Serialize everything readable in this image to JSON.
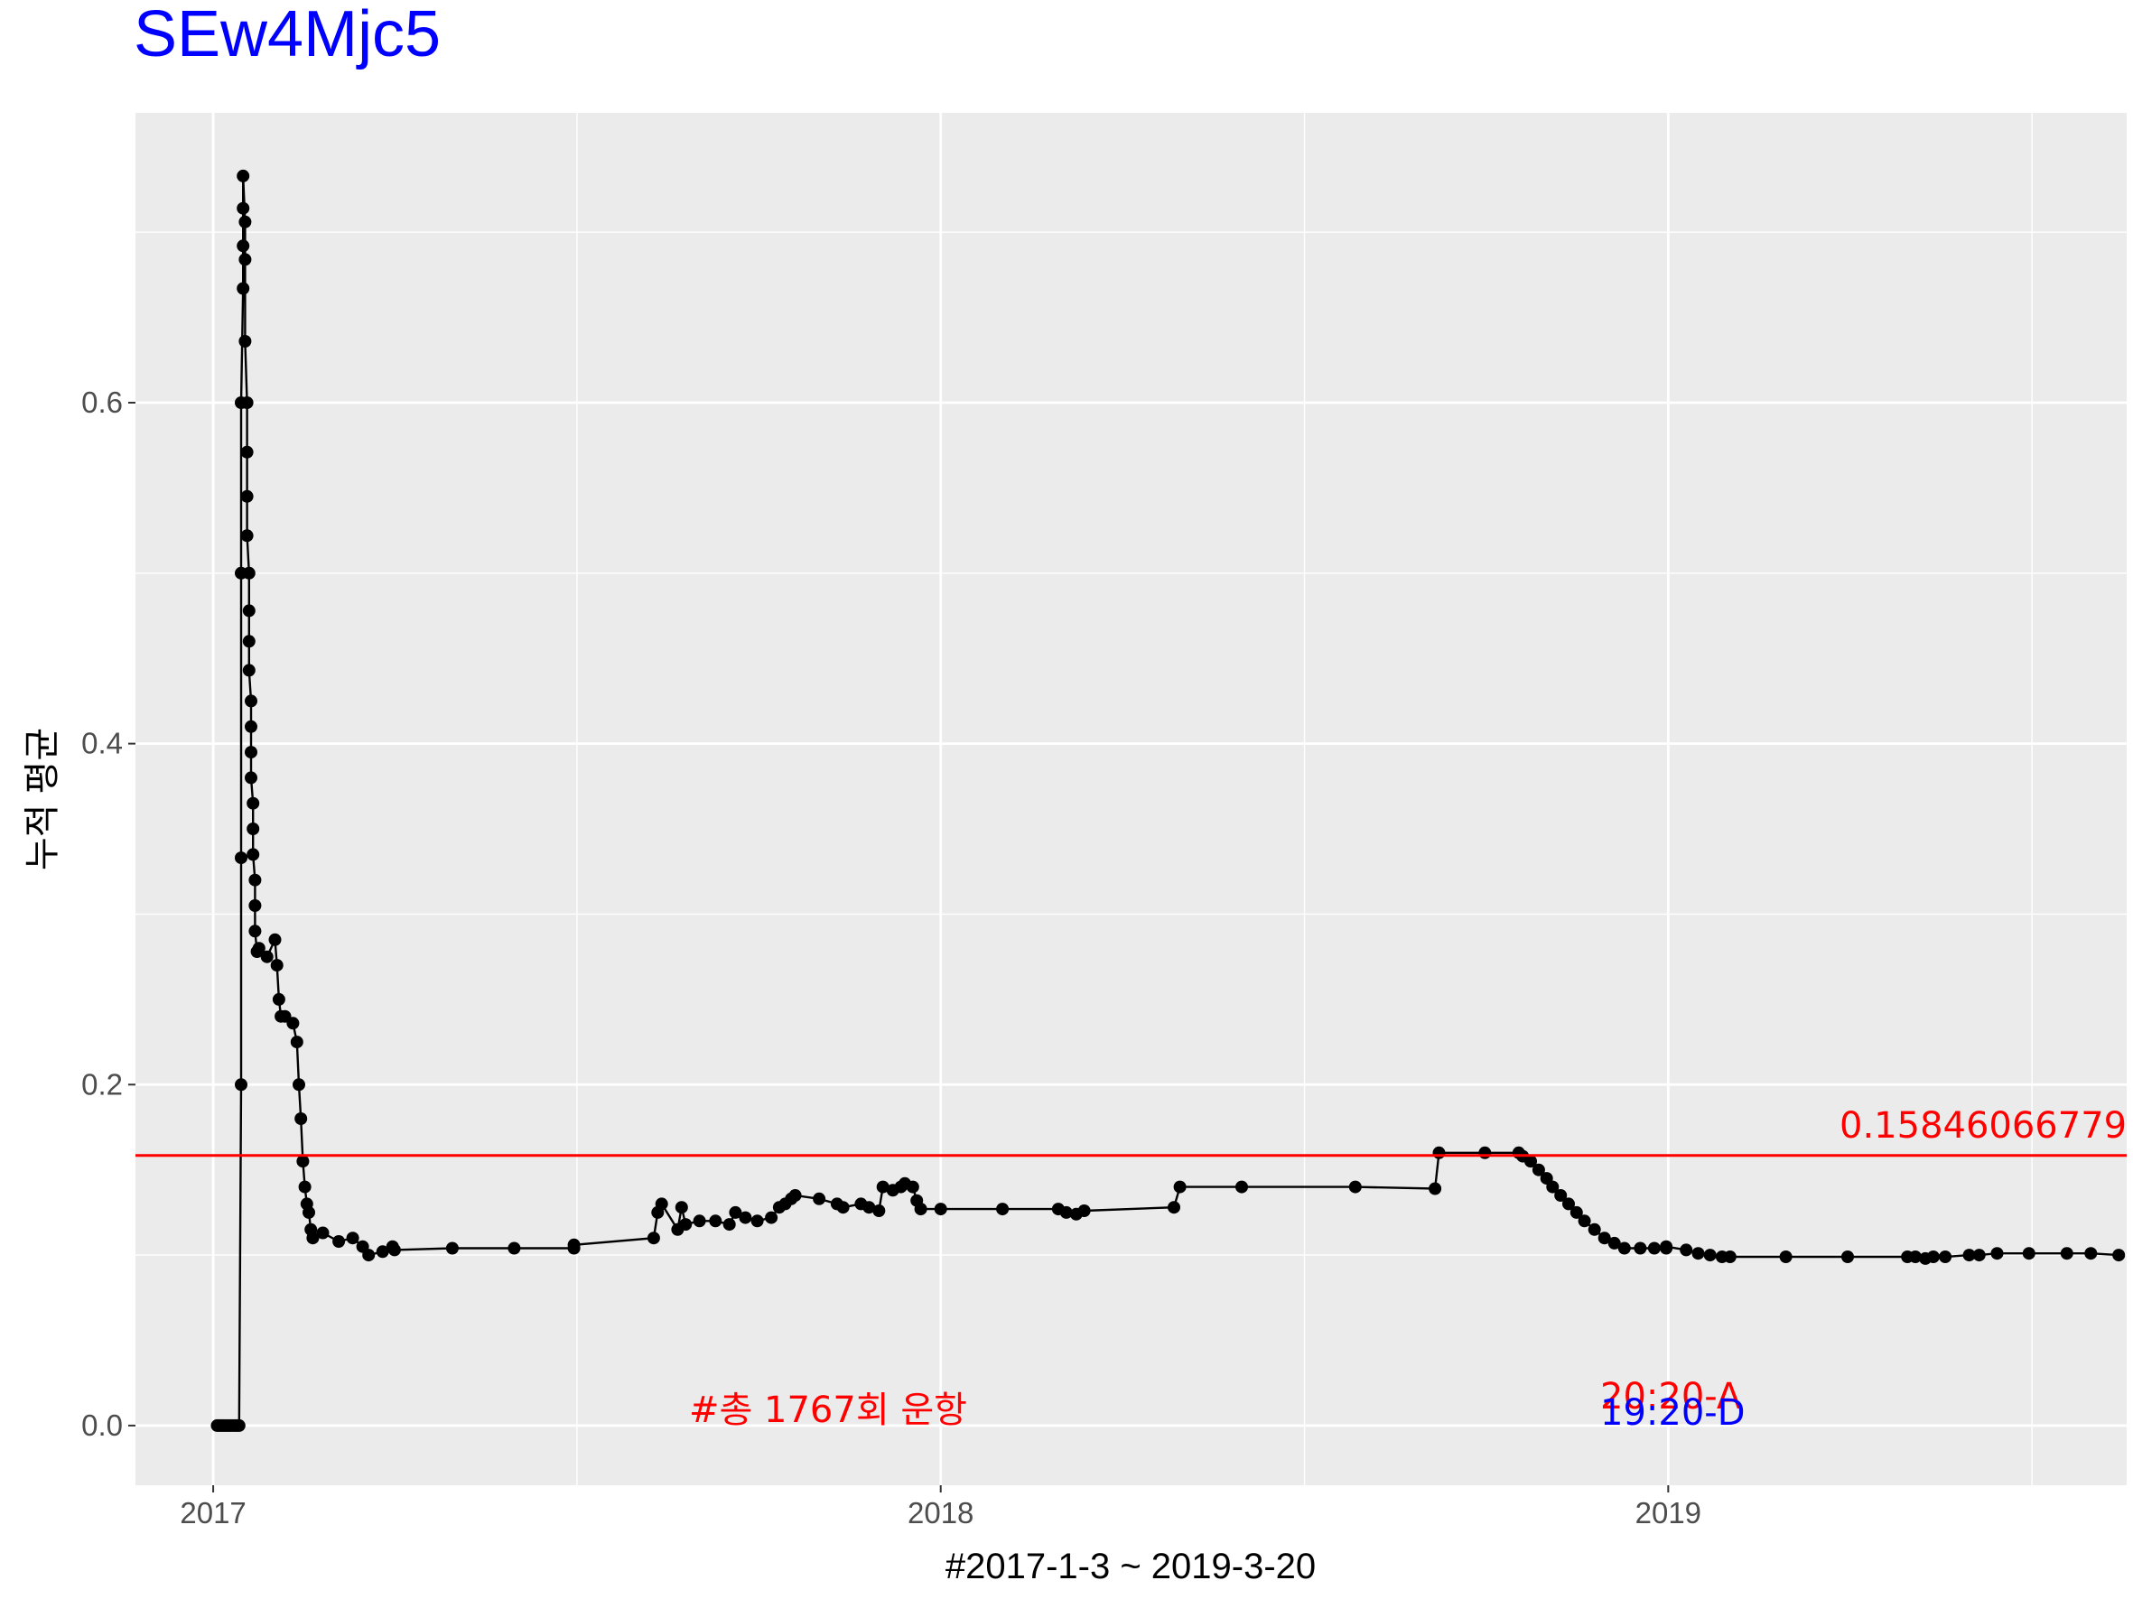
{
  "chart_data": {
    "type": "line",
    "title": "SEw4Mjc5",
    "title_color": "#0000ff",
    "xlabel": "#2017-1-3 ~ 2019-3-20",
    "ylabel": "누적 평균",
    "x_range": [
      "2016-11-23",
      "2019-08-19"
    ],
    "ylim": [
      -0.035,
      0.77
    ],
    "x_ticks": [
      {
        "date": "2017-01-01",
        "label": "2017"
      },
      {
        "date": "2018-01-01",
        "label": "2018"
      },
      {
        "date": "2019-01-01",
        "label": "2019"
      }
    ],
    "y_ticks": [
      {
        "value": 0.0,
        "label": "0.0"
      },
      {
        "value": 0.2,
        "label": "0.2"
      },
      {
        "value": 0.4,
        "label": "0.4"
      },
      {
        "value": 0.6,
        "label": "0.6"
      }
    ],
    "grid": true,
    "panel_background": "#ebebeb",
    "series": [
      {
        "color": "#000000",
        "points": [
          [
            "2017-01-03",
            0.0
          ],
          [
            "2017-01-04",
            0.0
          ],
          [
            "2017-01-05",
            0.0
          ],
          [
            "2017-01-06",
            0.0
          ],
          [
            "2017-01-07",
            0.0
          ],
          [
            "2017-01-08",
            0.0
          ],
          [
            "2017-01-09",
            0.0
          ],
          [
            "2017-01-10",
            0.0
          ],
          [
            "2017-01-11",
            0.0
          ],
          [
            "2017-01-12",
            0.0
          ],
          [
            "2017-01-13",
            0.0
          ],
          [
            "2017-01-14",
            0.0
          ],
          [
            "2017-01-15",
            0.2
          ],
          [
            "2017-01-15",
            0.333
          ],
          [
            "2017-01-15",
            0.5
          ],
          [
            "2017-01-15",
            0.6
          ],
          [
            "2017-01-16",
            0.667
          ],
          [
            "2017-01-16",
            0.692
          ],
          [
            "2017-01-16",
            0.714
          ],
          [
            "2017-01-16",
            0.733
          ],
          [
            "2017-01-17",
            0.706
          ],
          [
            "2017-01-17",
            0.684
          ],
          [
            "2017-01-17",
            0.636
          ],
          [
            "2017-01-18",
            0.6
          ],
          [
            "2017-01-18",
            0.571
          ],
          [
            "2017-01-18",
            0.545
          ],
          [
            "2017-01-18",
            0.522
          ],
          [
            "2017-01-19",
            0.5
          ],
          [
            "2017-01-19",
            0.478
          ],
          [
            "2017-01-19",
            0.46
          ],
          [
            "2017-01-19",
            0.443
          ],
          [
            "2017-01-20",
            0.425
          ],
          [
            "2017-01-20",
            0.41
          ],
          [
            "2017-01-20",
            0.395
          ],
          [
            "2017-01-20",
            0.38
          ],
          [
            "2017-01-21",
            0.365
          ],
          [
            "2017-01-21",
            0.35
          ],
          [
            "2017-01-21",
            0.335
          ],
          [
            "2017-01-22",
            0.32
          ],
          [
            "2017-01-22",
            0.305
          ],
          [
            "2017-01-22",
            0.29
          ],
          [
            "2017-01-23",
            0.278
          ],
          [
            "2017-01-24",
            0.28
          ],
          [
            "2017-01-28",
            0.275
          ],
          [
            "2017-02-01",
            0.285
          ],
          [
            "2017-02-02",
            0.27
          ],
          [
            "2017-02-03",
            0.25
          ],
          [
            "2017-02-04",
            0.24
          ],
          [
            "2017-02-06",
            0.24
          ],
          [
            "2017-02-10",
            0.236
          ],
          [
            "2017-02-12",
            0.225
          ],
          [
            "2017-02-13",
            0.2
          ],
          [
            "2017-02-14",
            0.18
          ],
          [
            "2017-02-15",
            0.155
          ],
          [
            "2017-02-16",
            0.14
          ],
          [
            "2017-02-17",
            0.13
          ],
          [
            "2017-02-18",
            0.125
          ],
          [
            "2017-02-19",
            0.115
          ],
          [
            "2017-02-20",
            0.11
          ],
          [
            "2017-02-25",
            0.113
          ],
          [
            "2017-03-05",
            0.108
          ],
          [
            "2017-03-12",
            0.11
          ],
          [
            "2017-03-17",
            0.105
          ],
          [
            "2017-03-20",
            0.1
          ],
          [
            "2017-03-27",
            0.102
          ],
          [
            "2017-04-01",
            0.105
          ],
          [
            "2017-04-02",
            0.103
          ],
          [
            "2017-05-01",
            0.104
          ],
          [
            "2017-06-01",
            0.104
          ],
          [
            "2017-07-01",
            0.104
          ],
          [
            "2017-07-01",
            0.106
          ],
          [
            "2017-08-10",
            0.11
          ],
          [
            "2017-08-12",
            0.125
          ],
          [
            "2017-08-14",
            0.13
          ],
          [
            "2017-08-22",
            0.115
          ],
          [
            "2017-08-24",
            0.128
          ],
          [
            "2017-08-26",
            0.118
          ],
          [
            "2017-09-02",
            0.12
          ],
          [
            "2017-09-10",
            0.12
          ],
          [
            "2017-09-17",
            0.118
          ],
          [
            "2017-09-20",
            0.125
          ],
          [
            "2017-09-25",
            0.122
          ],
          [
            "2017-10-01",
            0.12
          ],
          [
            "2017-10-08",
            0.122
          ],
          [
            "2017-10-12",
            0.128
          ],
          [
            "2017-10-15",
            0.13
          ],
          [
            "2017-10-18",
            0.133
          ],
          [
            "2017-10-20",
            0.135
          ],
          [
            "2017-11-01",
            0.133
          ],
          [
            "2017-11-10",
            0.13
          ],
          [
            "2017-11-13",
            0.128
          ],
          [
            "2017-11-22",
            0.13
          ],
          [
            "2017-11-26",
            0.128
          ],
          [
            "2017-12-01",
            0.126
          ],
          [
            "2017-12-03",
            0.14
          ],
          [
            "2017-12-08",
            0.138
          ],
          [
            "2017-12-12",
            0.14
          ],
          [
            "2017-12-14",
            0.142
          ],
          [
            "2017-12-18",
            0.14
          ],
          [
            "2017-12-20",
            0.132
          ],
          [
            "2017-12-22",
            0.127
          ],
          [
            "2018-01-01",
            0.127
          ],
          [
            "2018-02-01",
            0.127
          ],
          [
            "2018-03-01",
            0.127
          ],
          [
            "2018-03-05",
            0.125
          ],
          [
            "2018-03-10",
            0.124
          ],
          [
            "2018-03-14",
            0.126
          ],
          [
            "2018-04-28",
            0.128
          ],
          [
            "2018-05-01",
            0.14
          ],
          [
            "2018-06-01",
            0.14
          ],
          [
            "2018-07-28",
            0.14
          ],
          [
            "2018-09-06",
            0.139
          ],
          [
            "2018-09-08",
            0.16
          ],
          [
            "2018-10-01",
            0.16
          ],
          [
            "2018-10-18",
            0.16
          ],
          [
            "2018-10-20",
            0.158
          ],
          [
            "2018-10-24",
            0.155
          ],
          [
            "2018-10-28",
            0.15
          ],
          [
            "2018-11-01",
            0.145
          ],
          [
            "2018-11-04",
            0.14
          ],
          [
            "2018-11-08",
            0.135
          ],
          [
            "2018-11-12",
            0.13
          ],
          [
            "2018-11-16",
            0.125
          ],
          [
            "2018-11-20",
            0.12
          ],
          [
            "2018-11-25",
            0.115
          ],
          [
            "2018-11-30",
            0.11
          ],
          [
            "2018-12-05",
            0.107
          ],
          [
            "2018-12-10",
            0.104
          ],
          [
            "2018-12-18",
            0.104
          ],
          [
            "2018-12-25",
            0.104
          ],
          [
            "2018-12-31",
            0.104
          ],
          [
            "2018-12-31",
            0.105
          ],
          [
            "2019-01-10",
            0.103
          ],
          [
            "2019-01-16",
            0.101
          ],
          [
            "2019-01-22",
            0.1
          ],
          [
            "2019-01-28",
            0.099
          ],
          [
            "2019-02-01",
            0.099
          ],
          [
            "2019-03-01",
            0.099
          ],
          [
            "2019-04-01",
            0.099
          ],
          [
            "2019-05-01",
            0.099
          ],
          [
            "2019-05-05",
            0.099
          ],
          [
            "2019-05-10",
            0.098
          ],
          [
            "2019-05-14",
            0.099
          ],
          [
            "2019-05-20",
            0.099
          ],
          [
            "2019-06-01",
            0.1
          ],
          [
            "2019-06-06",
            0.1
          ],
          [
            "2019-06-15",
            0.101
          ],
          [
            "2019-07-01",
            0.101
          ],
          [
            "2019-07-20",
            0.101
          ],
          [
            "2019-08-01",
            0.101
          ],
          [
            "2019-08-15",
            0.1
          ]
        ]
      }
    ],
    "reference_line": {
      "value": 0.15846066779,
      "color": "#ff0000"
    },
    "annotations": [
      {
        "text": "0.15846066779",
        "color": "#ff0000"
      },
      {
        "text": "#총 1767회 운항",
        "color": "#ff0000"
      },
      {
        "text": "20:20-A",
        "color": "#ff0000"
      },
      {
        "text": "19:20-D",
        "color": "#0000ff"
      }
    ]
  }
}
